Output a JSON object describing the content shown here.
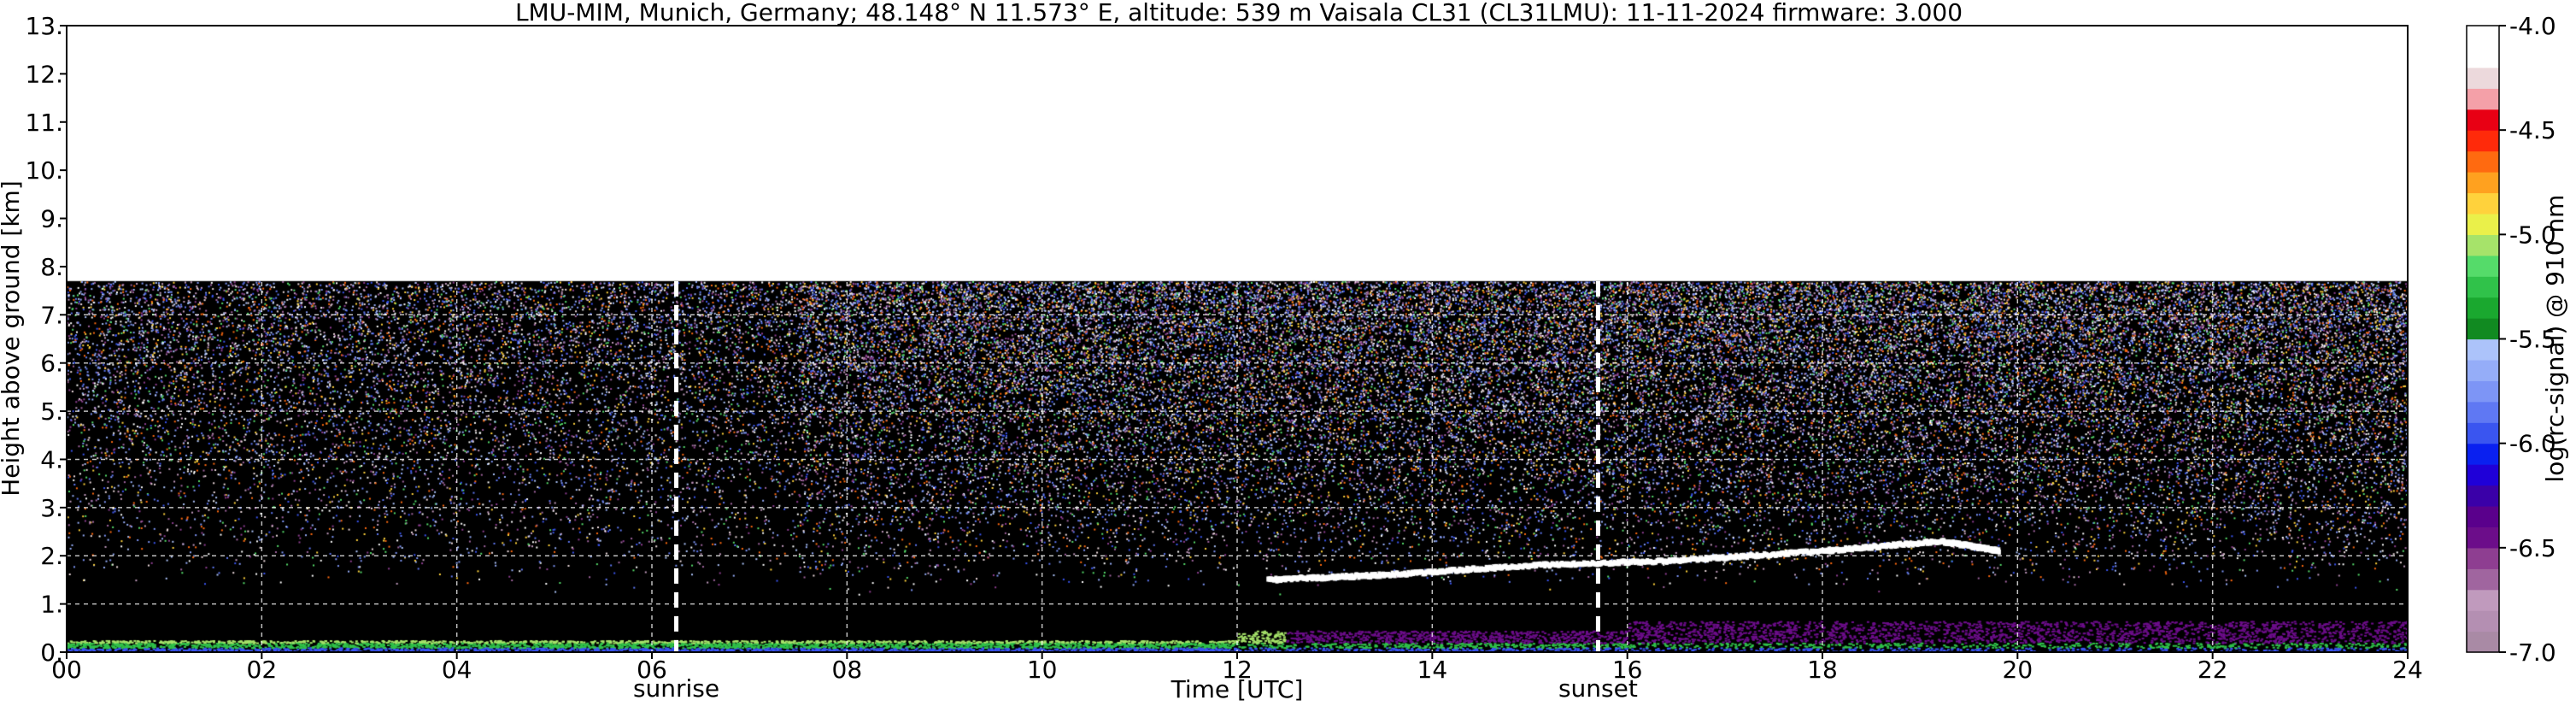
{
  "chart_data": {
    "type": "heatmap",
    "title": "LMU-MIM, Munich, Germany; 48.148° N 11.573° E, altitude: 539 m    Vaisala CL31 (CL31LMU): 11-11-2024    firmware: 3.000",
    "xlabel": "Time [UTC]",
    "ylabel": "Height above ground [km]",
    "xlim": [
      0,
      24
    ],
    "ylim": [
      0,
      13
    ],
    "x_ticks": [
      "00",
      "02",
      "04",
      "06",
      "08",
      "10",
      "12",
      "14",
      "16",
      "18",
      "20",
      "22",
      "24"
    ],
    "x_tick_values": [
      0,
      2,
      4,
      6,
      8,
      10,
      12,
      14,
      16,
      18,
      20,
      22,
      24
    ],
    "y_ticks": [
      "0.",
      "1.",
      "2.",
      "3.",
      "4.",
      "5.",
      "6.",
      "7.",
      "8.",
      "9.",
      "10.",
      "11.",
      "12.",
      "13."
    ],
    "y_tick_values": [
      0,
      1,
      2,
      3,
      4,
      5,
      6,
      7,
      8,
      9,
      10,
      11,
      12,
      13
    ],
    "grid": true,
    "data_top_km": 7.7,
    "events": [
      {
        "label": "sunrise",
        "time": 6.25
      },
      {
        "label": "sunset",
        "time": 15.7
      }
    ],
    "cloud_base_layer": [
      {
        "time": 12.3,
        "height": 1.5
      },
      {
        "time": 13.5,
        "height": 1.6
      },
      {
        "time": 15.0,
        "height": 1.8
      },
      {
        "time": 16.5,
        "height": 1.9
      },
      {
        "time": 18.0,
        "height": 2.1
      },
      {
        "time": 19.2,
        "height": 2.3
      },
      {
        "time": 19.8,
        "height": 2.1
      }
    ],
    "colorbar": {
      "label": "log(rc-signal) @ 910 nm",
      "min": -7.0,
      "max": -4.0,
      "ticks": [
        "-4.0",
        "-4.5",
        "-5.0",
        "-5.5",
        "-6.0",
        "-6.5",
        "-7.0"
      ],
      "tick_values": [
        -4.0,
        -4.5,
        -5.0,
        -5.5,
        -6.0,
        -6.5,
        -7.0
      ],
      "colors": [
        "#a98aa5",
        "#b48fb2",
        "#c09abd",
        "#a0659f",
        "#8e3e91",
        "#6c0d8a",
        "#5a008c",
        "#3a00a8",
        "#1f00d8",
        "#0a20f0",
        "#3a55f0",
        "#5f78f3",
        "#7d95f6",
        "#95adf8",
        "#acc3fa",
        "#118a21",
        "#1aa82f",
        "#30c24a",
        "#55db6a",
        "#a6e36a",
        "#eaf04a",
        "#ffd23c",
        "#ffa11f",
        "#ff6a10",
        "#ff2a0a",
        "#e80014",
        "#f4a0a8",
        "#ecd9dc",
        "#ffffff",
        "#ffffff"
      ]
    }
  }
}
